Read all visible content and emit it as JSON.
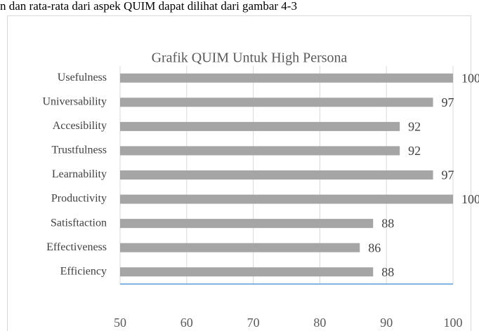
{
  "text": "n dan rata-rata dari aspek QUIM dapat dilihat dari gambar 4-3",
  "chart_data": {
    "type": "bar",
    "orientation": "horizontal",
    "title": "Grafik QUIM Untuk High Persona",
    "categories": [
      "Usefulness",
      "Universability",
      "Accesibility",
      "Trustfulness",
      "Learnability",
      "Productivity",
      "Satisftaction",
      "Effectiveness",
      "Efficiency"
    ],
    "values": [
      100,
      97,
      92,
      92,
      97,
      100,
      88,
      86,
      88
    ],
    "color": "#a5a5a5",
    "xlim": [
      50,
      100
    ],
    "xticks": [
      50,
      60,
      70,
      80,
      90,
      100
    ],
    "grid": true
  }
}
